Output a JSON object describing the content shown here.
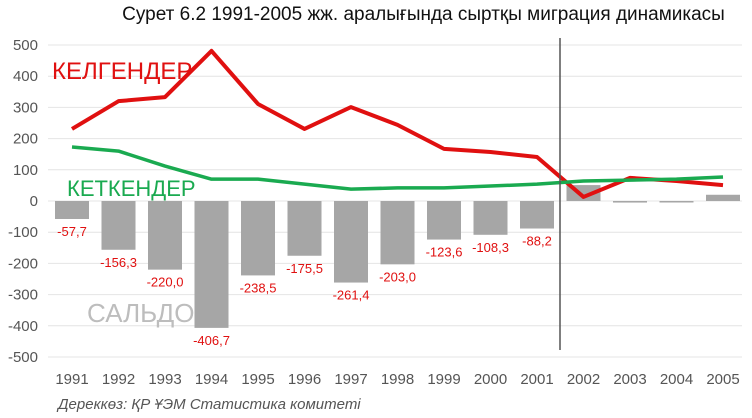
{
  "chart_data": {
    "type": "bar+line",
    "title": "Сурет 6.2 1991-2005 жж. аралығында сыртқы миграция динамикасы",
    "source": "Дереккөз: ҚР ҰЭМ Статистика комитеті",
    "categories": [
      "1991",
      "1992",
      "1993",
      "1994",
      "1995",
      "1996",
      "1997",
      "1998",
      "1999",
      "2000",
      "2001",
      "2002",
      "2003",
      "2004",
      "2005"
    ],
    "ylim": [
      -500,
      500
    ],
    "yticks": [
      -500,
      -400,
      -300,
      -200,
      -100,
      0,
      100,
      200,
      300,
      400,
      500
    ],
    "grid": true,
    "series": [
      {
        "name": "КЕЛГЕНДЕР",
        "type": "line",
        "color": "#e01010",
        "values": [
          231,
          320,
          333,
          481,
          311,
          231,
          301,
          244,
          167,
          157,
          141,
          13,
          74,
          64,
          51
        ]
      },
      {
        "name": "КЕТКЕНДЕР",
        "type": "line",
        "color": "#1aaa50",
        "values": [
          173,
          160,
          112,
          70,
          70,
          54,
          38,
          42,
          42,
          48,
          54,
          64,
          67,
          70,
          77
        ]
      },
      {
        "name": "САЛЬДО",
        "type": "bar",
        "color": "#a6a6a6",
        "values": [
          -57.7,
          -156.3,
          -220.0,
          -406.7,
          -238.5,
          -175.5,
          -261.4,
          -203.0,
          -123.6,
          -108.3,
          -88.2,
          51,
          -5,
          0,
          20
        ]
      }
    ],
    "data_labels": [
      "-57,7",
      "-156,3",
      "-220,0",
      "-406,7",
      "-238,5",
      "-175,5",
      "-261,4",
      "-203,0",
      "-123,6",
      "-108,3",
      "-88,2"
    ],
    "divider_after": "2001"
  }
}
